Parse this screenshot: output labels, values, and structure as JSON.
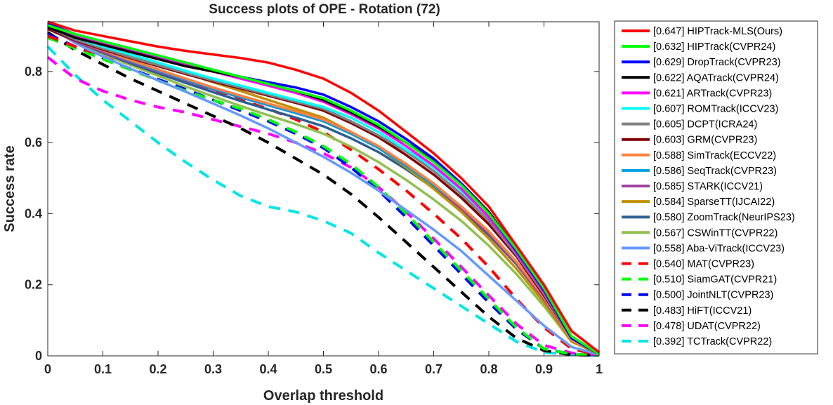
{
  "chart_data": {
    "type": "line",
    "title": "Success plots of OPE - Rotation (72)",
    "xlabel": "Overlap threshold",
    "ylabel": "Success rate",
    "xlim": [
      0,
      1
    ],
    "ylim": [
      0,
      0.94
    ],
    "xticks": [
      0,
      0.1,
      0.2,
      0.3,
      0.4,
      0.5,
      0.6,
      0.7,
      0.8,
      0.9,
      1
    ],
    "xtick_labels": [
      "0",
      "0.1",
      "0.2",
      "0.3",
      "0.4",
      "0.5",
      "0.6",
      "0.7",
      "0.8",
      "0.9",
      "1"
    ],
    "yticks": [
      0,
      0.2,
      0.4,
      0.6,
      0.8
    ],
    "ytick_labels": [
      "0",
      "0.2",
      "0.4",
      "0.6",
      "0.8"
    ],
    "grid": false,
    "legend_position": "outside-right",
    "x": [
      0,
      0.05,
      0.1,
      0.15,
      0.2,
      0.25,
      0.3,
      0.35,
      0.4,
      0.45,
      0.5,
      0.55,
      0.6,
      0.65,
      0.7,
      0.75,
      0.8,
      0.85,
      0.9,
      0.95,
      1
    ],
    "series": [
      {
        "name": "[0.647] HIPTrack-MLS(Ours)",
        "color": "#ff0000",
        "dashed": false,
        "values": [
          0.94,
          0.915,
          0.9,
          0.885,
          0.87,
          0.858,
          0.848,
          0.838,
          0.825,
          0.805,
          0.78,
          0.74,
          0.69,
          0.63,
          0.57,
          0.5,
          0.42,
          0.31,
          0.2,
          0.07,
          0.01
        ]
      },
      {
        "name": "[0.632] HIPTrack(CVPR24)",
        "color": "#00ff00",
        "dashed": false,
        "values": [
          0.93,
          0.905,
          0.885,
          0.865,
          0.845,
          0.825,
          0.805,
          0.785,
          0.765,
          0.745,
          0.725,
          0.69,
          0.65,
          0.6,
          0.545,
          0.48,
          0.4,
          0.3,
          0.19,
          0.055,
          0.005
        ]
      },
      {
        "name": "[0.629] DropTrack(CVPR23)",
        "color": "#0000ff",
        "dashed": false,
        "values": [
          0.935,
          0.905,
          0.885,
          0.865,
          0.845,
          0.825,
          0.805,
          0.785,
          0.77,
          0.755,
          0.735,
          0.7,
          0.66,
          0.61,
          0.555,
          0.485,
          0.4,
          0.295,
          0.185,
          0.05,
          0.005
        ]
      },
      {
        "name": "[0.622] AQATrack(CVPR24)",
        "color": "#000000",
        "dashed": false,
        "values": [
          0.925,
          0.895,
          0.875,
          0.855,
          0.835,
          0.815,
          0.8,
          0.785,
          0.765,
          0.745,
          0.72,
          0.685,
          0.645,
          0.6,
          0.55,
          0.485,
          0.405,
          0.3,
          0.185,
          0.05,
          0.005
        ]
      },
      {
        "name": "[0.621] ARTrack(CVPR23)",
        "color": "#ff00ff",
        "dashed": false,
        "values": [
          0.93,
          0.9,
          0.878,
          0.858,
          0.84,
          0.82,
          0.8,
          0.78,
          0.76,
          0.74,
          0.715,
          0.68,
          0.64,
          0.59,
          0.535,
          0.47,
          0.39,
          0.29,
          0.18,
          0.05,
          0.005
        ]
      },
      {
        "name": "[0.607] ROMTrack(ICCV23)",
        "color": "#00ffff",
        "dashed": false,
        "values": [
          0.93,
          0.895,
          0.87,
          0.848,
          0.825,
          0.802,
          0.78,
          0.76,
          0.74,
          0.72,
          0.7,
          0.67,
          0.63,
          0.58,
          0.53,
          0.465,
          0.39,
          0.29,
          0.18,
          0.05,
          0.005
        ]
      },
      {
        "name": "[0.605] DCPT(ICRA24)",
        "color": "#808080",
        "dashed": false,
        "values": [
          0.925,
          0.89,
          0.865,
          0.84,
          0.818,
          0.796,
          0.775,
          0.755,
          0.735,
          0.715,
          0.695,
          0.66,
          0.62,
          0.575,
          0.52,
          0.455,
          0.38,
          0.285,
          0.175,
          0.05,
          0.005
        ]
      },
      {
        "name": "[0.603] GRM(CVPR23)",
        "color": "#800000",
        "dashed": false,
        "values": [
          0.92,
          0.888,
          0.862,
          0.838,
          0.815,
          0.793,
          0.772,
          0.752,
          0.732,
          0.712,
          0.69,
          0.655,
          0.615,
          0.565,
          0.51,
          0.445,
          0.37,
          0.28,
          0.17,
          0.05,
          0.005
        ]
      },
      {
        "name": "[0.588] SimTrack(ECCV22)",
        "color": "#ff8040",
        "dashed": false,
        "values": [
          0.925,
          0.89,
          0.86,
          0.832,
          0.806,
          0.78,
          0.755,
          0.732,
          0.71,
          0.688,
          0.665,
          0.63,
          0.59,
          0.54,
          0.485,
          0.42,
          0.35,
          0.265,
          0.165,
          0.045,
          0.005
        ]
      },
      {
        "name": "[0.586] SeqTrack(CVPR23)",
        "color": "#00a0e0",
        "dashed": false,
        "values": [
          0.93,
          0.89,
          0.86,
          0.83,
          0.803,
          0.777,
          0.752,
          0.728,
          0.705,
          0.683,
          0.66,
          0.625,
          0.585,
          0.535,
          0.48,
          0.42,
          0.35,
          0.265,
          0.165,
          0.045,
          0.005
        ]
      },
      {
        "name": "[0.585] STARK(ICCV21)",
        "color": "#a040a0",
        "dashed": false,
        "values": [
          0.92,
          0.885,
          0.855,
          0.827,
          0.8,
          0.775,
          0.75,
          0.727,
          0.705,
          0.683,
          0.66,
          0.625,
          0.585,
          0.535,
          0.48,
          0.415,
          0.345,
          0.26,
          0.16,
          0.045,
          0.005
        ]
      },
      {
        "name": "[0.584] SparseTT(IJCAI22)",
        "color": "#c09000",
        "dashed": false,
        "values": [
          0.92,
          0.895,
          0.87,
          0.845,
          0.82,
          0.795,
          0.77,
          0.745,
          0.72,
          0.695,
          0.67,
          0.63,
          0.585,
          0.53,
          0.47,
          0.405,
          0.33,
          0.245,
          0.15,
          0.04,
          0.005
        ]
      },
      {
        "name": "[0.580] ZoomTrack(NeurIPS23)",
        "color": "#2b5f8f",
        "dashed": false,
        "values": [
          0.92,
          0.885,
          0.853,
          0.823,
          0.795,
          0.768,
          0.742,
          0.717,
          0.693,
          0.67,
          0.646,
          0.612,
          0.573,
          0.525,
          0.472,
          0.41,
          0.34,
          0.258,
          0.16,
          0.045,
          0.005
        ]
      },
      {
        "name": "[0.567] CSWinTT(CVPR22)",
        "color": "#90c050",
        "dashed": false,
        "values": [
          0.925,
          0.885,
          0.85,
          0.818,
          0.788,
          0.758,
          0.73,
          0.703,
          0.677,
          0.652,
          0.625,
          0.588,
          0.545,
          0.495,
          0.44,
          0.38,
          0.31,
          0.23,
          0.14,
          0.04,
          0.005
        ]
      },
      {
        "name": "[0.558] Aba-ViTrack(ICCV23)",
        "color": "#6699ff",
        "dashed": false,
        "values": [
          0.93,
          0.88,
          0.842,
          0.808,
          0.775,
          0.743,
          0.71,
          0.676,
          0.64,
          0.6,
          0.56,
          0.515,
          0.465,
          0.41,
          0.355,
          0.295,
          0.225,
          0.155,
          0.085,
          0.025,
          0.003
        ]
      },
      {
        "name": "[0.540] MAT(CVPR23)",
        "color": "#ff0000",
        "dashed": true,
        "values": [
          0.9,
          0.87,
          0.845,
          0.82,
          0.795,
          0.77,
          0.745,
          0.72,
          0.695,
          0.665,
          0.63,
          0.58,
          0.525,
          0.465,
          0.4,
          0.33,
          0.25,
          0.16,
          0.08,
          0.02,
          0.002
        ]
      },
      {
        "name": "[0.510] SiamGAT(CVPR21)",
        "color": "#00ff00",
        "dashed": true,
        "values": [
          0.895,
          0.865,
          0.835,
          0.805,
          0.775,
          0.745,
          0.72,
          0.695,
          0.665,
          0.63,
          0.59,
          0.54,
          0.475,
          0.4,
          0.32,
          0.24,
          0.16,
          0.08,
          0.02,
          0.005,
          0.001
        ]
      },
      {
        "name": "[0.500] JointNLT(CVPR23)",
        "color": "#0000ff",
        "dashed": true,
        "values": [
          0.905,
          0.87,
          0.838,
          0.808,
          0.778,
          0.75,
          0.72,
          0.69,
          0.66,
          0.625,
          0.585,
          0.53,
          0.465,
          0.39,
          0.31,
          0.23,
          0.15,
          0.075,
          0.02,
          0.005,
          0.001
        ]
      },
      {
        "name": "[0.483] HiFT(ICCV21)",
        "color": "#000000",
        "dashed": true,
        "values": [
          0.91,
          0.86,
          0.82,
          0.78,
          0.745,
          0.71,
          0.675,
          0.64,
          0.6,
          0.555,
          0.51,
          0.455,
          0.39,
          0.32,
          0.25,
          0.18,
          0.11,
          0.05,
          0.015,
          0.003,
          0.001
        ]
      },
      {
        "name": "[0.478] UDAT(CVPR22)",
        "color": "#ff00ff",
        "dashed": true,
        "values": [
          0.84,
          0.78,
          0.745,
          0.72,
          0.7,
          0.685,
          0.665,
          0.645,
          0.625,
          0.6,
          0.57,
          0.53,
          0.475,
          0.405,
          0.33,
          0.25,
          0.17,
          0.09,
          0.03,
          0.008,
          0.002
        ]
      },
      {
        "name": "[0.392] TCTrack(CVPR22)",
        "color": "#00e5e5",
        "dashed": true,
        "values": [
          0.87,
          0.79,
          0.72,
          0.66,
          0.6,
          0.545,
          0.495,
          0.45,
          0.42,
          0.405,
          0.38,
          0.345,
          0.29,
          0.24,
          0.19,
          0.14,
          0.09,
          0.04,
          0.01,
          0.003,
          0.001
        ]
      }
    ]
  }
}
